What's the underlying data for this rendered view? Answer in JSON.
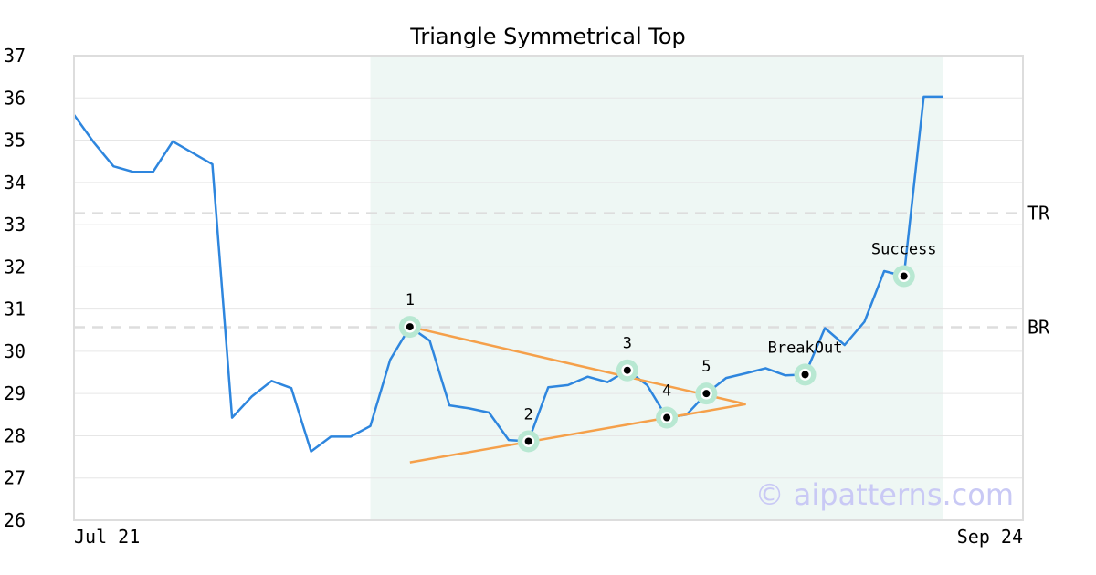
{
  "chart_data": {
    "type": "line",
    "title": "Triangle Symmetrical Top",
    "watermark": "© aipatterns.com",
    "ylim": [
      26,
      37
    ],
    "y_ticks": [
      "26",
      "27",
      "28",
      "29",
      "30",
      "31",
      "32",
      "33",
      "34",
      "35",
      "36",
      "37"
    ],
    "x_tick_labels": [
      "Jul 21",
      "Sep 24"
    ],
    "x_domain": [
      0,
      44
    ],
    "highlight_range": [
      15,
      44
    ],
    "grid": true,
    "colors": {
      "price": "#2e86de",
      "triangle": "#f5a04a",
      "highlight": "#eef7f4",
      "marker_ring": "#b8e8d2",
      "level_line": "#dddddd"
    },
    "series": [
      {
        "values": [
          [
            0,
            35.6
          ],
          [
            1,
            34.95
          ],
          [
            2,
            34.38
          ],
          [
            3,
            34.25
          ],
          [
            4,
            34.25
          ],
          [
            5,
            34.97
          ],
          [
            6,
            34.7
          ],
          [
            7,
            34.43
          ],
          [
            8,
            28.43
          ],
          [
            9,
            28.93
          ],
          [
            10,
            29.3
          ],
          [
            11,
            29.13
          ],
          [
            12,
            27.63
          ],
          [
            13,
            27.98
          ],
          [
            14,
            27.98
          ],
          [
            15,
            28.23
          ],
          [
            16,
            29.8
          ],
          [
            17,
            30.58
          ],
          [
            18,
            30.25
          ],
          [
            19,
            28.72
          ],
          [
            20,
            28.65
          ],
          [
            21,
            28.55
          ],
          [
            22,
            27.9
          ],
          [
            23,
            27.87
          ],
          [
            24,
            29.15
          ],
          [
            25,
            29.2
          ],
          [
            26,
            29.4
          ],
          [
            27,
            29.27
          ],
          [
            28,
            29.55
          ],
          [
            29,
            29.2
          ],
          [
            30,
            28.43
          ],
          [
            31,
            28.5
          ],
          [
            32,
            29.0
          ],
          [
            33,
            29.37
          ],
          [
            34,
            29.48
          ],
          [
            35,
            29.6
          ],
          [
            36,
            29.43
          ],
          [
            37,
            29.45
          ],
          [
            38,
            30.55
          ],
          [
            39,
            30.15
          ],
          [
            40,
            30.7
          ],
          [
            41,
            31.9
          ],
          [
            42,
            31.78
          ],
          [
            43,
            36.03
          ],
          [
            44,
            36.03
          ]
        ]
      }
    ],
    "trendlines": [
      {
        "from": [
          17,
          30.58
        ],
        "to": [
          34,
          28.75
        ]
      },
      {
        "from": [
          17,
          27.37
        ],
        "to": [
          34,
          28.75
        ]
      }
    ],
    "levels": [
      {
        "label": "TR",
        "value": 33.27
      },
      {
        "label": "BR",
        "value": 30.57
      }
    ],
    "points": [
      {
        "label": "1",
        "x": 17,
        "y": 30.58
      },
      {
        "label": "2",
        "x": 23,
        "y": 27.87
      },
      {
        "label": "3",
        "x": 28,
        "y": 29.55
      },
      {
        "label": "4",
        "x": 30,
        "y": 28.43
      },
      {
        "label": "5",
        "x": 32,
        "y": 29.0
      },
      {
        "label": "BreakOut",
        "x": 37,
        "y": 29.45
      },
      {
        "label": "Success",
        "x": 42,
        "y": 31.78
      }
    ]
  }
}
